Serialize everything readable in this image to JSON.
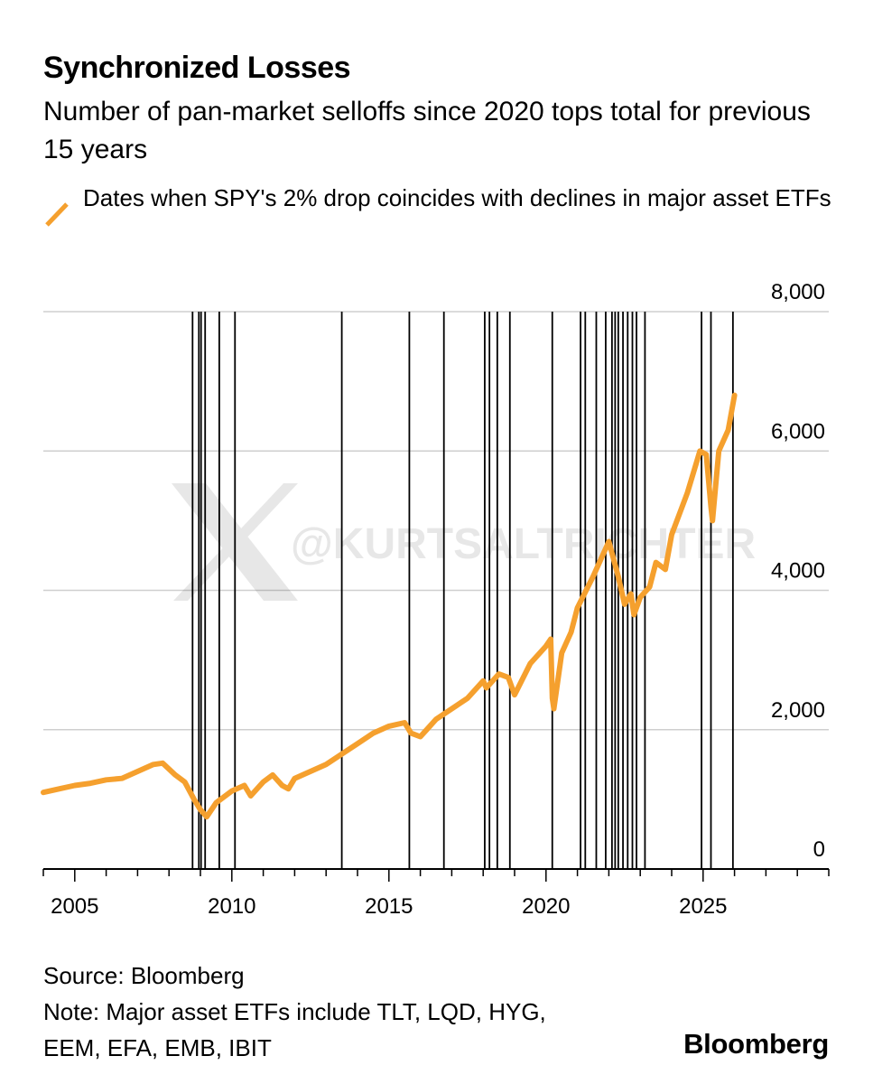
{
  "header": {
    "title": "Synchronized Losses",
    "subtitle": "Number of pan-market selloffs since 2020 tops total for previous 15 years"
  },
  "legend": {
    "label": "Dates when SPY's 2% drop coincides with declines in major asset ETFs",
    "color": "#f5a02e"
  },
  "footer": {
    "source": "Source: Bloomberg",
    "note_line1": "Note: Major asset ETFs include TLT, LQD, HYG,",
    "note_line2": "EEM, EFA, EMB, IBIT",
    "brand": "Bloomberg"
  },
  "watermark": "@KURTSALTRICHTER",
  "chart_data": {
    "type": "line",
    "title": "Synchronized Losses",
    "xlim": [
      2004,
      2029
    ],
    "ylim": [
      0,
      8000
    ],
    "x_ticks": [
      2005,
      2010,
      2015,
      2020,
      2025
    ],
    "y_ticks": [
      0,
      2000,
      4000,
      6000,
      8000
    ],
    "y_tick_labels": [
      "0",
      "2,000",
      "4,000",
      "6,000",
      "8,000"
    ],
    "y_axis_side": "right",
    "grid": "horizontal",
    "line_color": "#f5a02e",
    "vline_color": "#000000",
    "series": [
      {
        "name": "Dates when SPY's 2% drop coincides with declines in major asset ETFs",
        "x": [
          2004.0,
          2004.5,
          2005.0,
          2005.5,
          2006.0,
          2006.5,
          2007.0,
          2007.5,
          2007.8,
          2008.2,
          2008.5,
          2008.8,
          2009.0,
          2009.2,
          2009.5,
          2010.0,
          2010.4,
          2010.6,
          2011.0,
          2011.3,
          2011.6,
          2011.8,
          2012.0,
          2012.5,
          2013.0,
          2013.5,
          2014.0,
          2014.5,
          2015.0,
          2015.5,
          2015.7,
          2016.0,
          2016.2,
          2016.5,
          2017.0,
          2017.5,
          2018.0,
          2018.1,
          2018.5,
          2018.8,
          2019.0,
          2019.5,
          2020.0,
          2020.15,
          2020.2,
          2020.25,
          2020.5,
          2020.8,
          2021.0,
          2021.5,
          2022.0,
          2022.3,
          2022.5,
          2022.7,
          2022.8,
          2023.0,
          2023.3,
          2023.5,
          2023.8,
          2024.0,
          2024.5,
          2024.9,
          2025.1,
          2025.25,
          2025.3,
          2025.5,
          2025.8,
          2026.0
        ],
        "values": [
          1100,
          1150,
          1200,
          1230,
          1280,
          1300,
          1400,
          1500,
          1520,
          1350,
          1250,
          1000,
          850,
          750,
          950,
          1120,
          1200,
          1050,
          1250,
          1350,
          1200,
          1150,
          1300,
          1400,
          1500,
          1650,
          1800,
          1950,
          2050,
          2100,
          1950,
          1900,
          2000,
          2150,
          2300,
          2450,
          2700,
          2600,
          2800,
          2750,
          2500,
          2950,
          3200,
          3300,
          2450,
          2300,
          3100,
          3400,
          3750,
          4200,
          4700,
          4200,
          3800,
          3950,
          3650,
          3900,
          4050,
          4400,
          4300,
          4800,
          5400,
          6000,
          5950,
          5200,
          5000,
          6000,
          6300,
          6800
        ]
      }
    ],
    "vlines": [
      2008.75,
      2008.95,
      2009.02,
      2009.15,
      2009.6,
      2010.1,
      2013.5,
      2015.65,
      2016.75,
      2018.05,
      2018.2,
      2018.45,
      2018.85,
      2020.2,
      2021.1,
      2021.25,
      2021.6,
      2021.9,
      2022.1,
      2022.2,
      2022.3,
      2022.45,
      2022.6,
      2022.75,
      2022.88,
      2023.15,
      2024.95,
      2025.25,
      2025.95
    ]
  }
}
